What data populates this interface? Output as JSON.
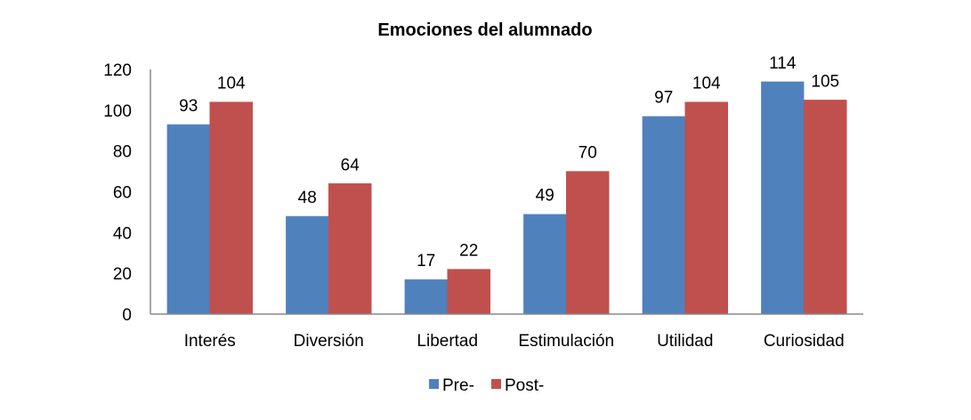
{
  "chart_data": {
    "type": "bar",
    "title": "Emociones del alumnado",
    "xlabel": "",
    "ylabel": "",
    "categories": [
      "Interés",
      "Diversión",
      "Libertad",
      "Estimulación",
      "Utilidad",
      "Curiosidad"
    ],
    "series": [
      {
        "name": "Pre-",
        "color": "#4F81BD",
        "values": [
          93,
          48,
          17,
          49,
          97,
          114
        ]
      },
      {
        "name": "Post-",
        "color": "#C0504D",
        "values": [
          104,
          64,
          22,
          70,
          104,
          105
        ]
      }
    ],
    "ylim": [
      0,
      120
    ],
    "yticks": [
      0,
      20,
      40,
      60,
      80,
      100,
      120
    ],
    "grid": false,
    "legend": "bottom"
  }
}
